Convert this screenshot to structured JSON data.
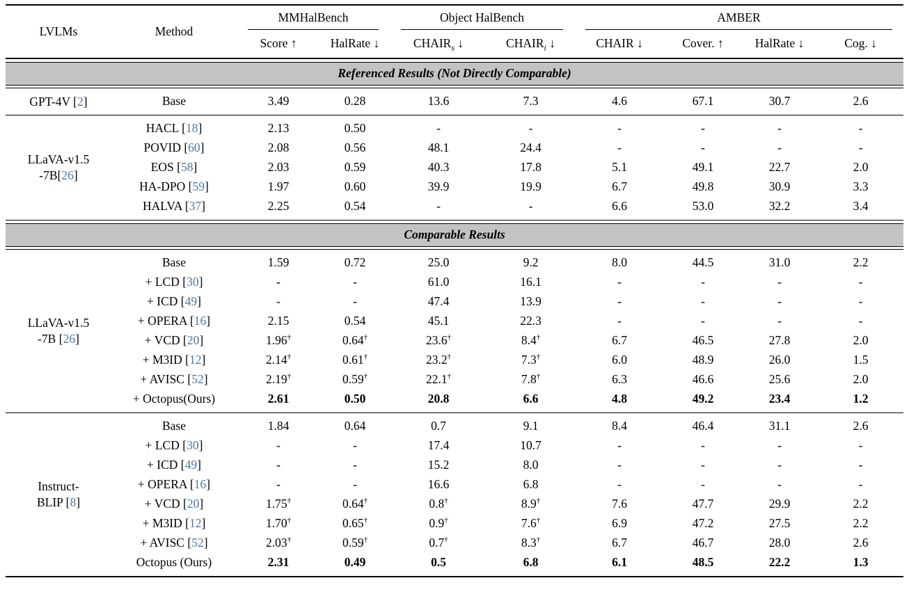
{
  "colors": {
    "citation_blue": "#4678b4",
    "band_gray": "#c3c3c3",
    "rule_black": "#000000"
  },
  "header": {
    "lvlms_label": "LVLMs",
    "method_label": "Method",
    "groups": [
      {
        "label": "MMHalBench",
        "columns": [
          {
            "text": "Score",
            "sub": "",
            "arrow": "↑"
          },
          {
            "text": "HalRate",
            "sub": "",
            "arrow": "↓"
          }
        ]
      },
      {
        "label": "Object HalBench",
        "columns": [
          {
            "text": "CHAIR",
            "sub": "s",
            "arrow": "↓"
          },
          {
            "text": "CHAIR",
            "sub": "i",
            "arrow": "↓"
          }
        ]
      },
      {
        "label": "AMBER",
        "columns": [
          {
            "text": "CHAIR",
            "sub": "",
            "arrow": "↓"
          },
          {
            "text": "Cover.",
            "sub": "",
            "arrow": "↑"
          },
          {
            "text": "HalRate",
            "sub": "",
            "arrow": "↓"
          },
          {
            "text": "Cog.",
            "sub": "",
            "arrow": "↓"
          }
        ]
      }
    ]
  },
  "sections": [
    {
      "type": "band",
      "label": "Referenced Results (Not Directly Comparable)"
    },
    {
      "type": "group",
      "lvlm": {
        "lines": [
          "GPT-4V"
        ],
        "cite": "2",
        "cite_space": true
      },
      "rows": [
        {
          "method": {
            "name": "Base"
          },
          "values": [
            "3.49",
            "0.28",
            "13.6",
            "7.3",
            "4.6",
            "67.1",
            "30.7",
            "2.6"
          ]
        }
      ]
    },
    {
      "type": "group",
      "lvlm": {
        "lines": [
          "LLaVA-v1.5",
          "-7B"
        ],
        "cite": "26",
        "cite_space": false
      },
      "rows": [
        {
          "method": {
            "name": "HACL",
            "cite": "18"
          },
          "values": [
            "2.13",
            "0.50",
            "-",
            "-",
            "-",
            "-",
            "-",
            "-"
          ]
        },
        {
          "method": {
            "name": "POVID",
            "cite": "60"
          },
          "values": [
            "2.08",
            "0.56",
            "48.1",
            "24.4",
            "-",
            "-",
            "-",
            "-"
          ]
        },
        {
          "method": {
            "name": "EOS",
            "cite": "58"
          },
          "values": [
            "2.03",
            "0.59",
            "40.3",
            "17.8",
            "5.1",
            "49.1",
            "22.7",
            "2.0"
          ]
        },
        {
          "method": {
            "name": "HA-DPO",
            "cite": "59"
          },
          "values": [
            "1.97",
            "0.60",
            "39.9",
            "19.9",
            "6.7",
            "49.8",
            "30.9",
            "3.3"
          ]
        },
        {
          "method": {
            "name": "HALVA",
            "cite": "37"
          },
          "values": [
            "2.25",
            "0.54",
            "-",
            "-",
            "6.6",
            "53.0",
            "32.2",
            "3.4"
          ]
        }
      ]
    },
    {
      "type": "band",
      "label": "Comparable Results"
    },
    {
      "type": "group",
      "lvlm": {
        "lines": [
          "LLaVA-v1.5",
          "-7B"
        ],
        "cite": "26",
        "cite_space": true
      },
      "rows": [
        {
          "method": {
            "name": "Base"
          },
          "values": [
            "1.59",
            "0.72",
            "25.0",
            "9.2",
            "8.0",
            "44.5",
            "31.0",
            "2.2"
          ]
        },
        {
          "method": {
            "name": "+ LCD",
            "cite": "30"
          },
          "values": [
            "-",
            "-",
            "61.0",
            "16.1",
            "-",
            "-",
            "-",
            "-"
          ]
        },
        {
          "method": {
            "name": "+ ICD",
            "cite": "49"
          },
          "values": [
            "-",
            "-",
            "47.4",
            "13.9",
            "-",
            "-",
            "-",
            "-"
          ]
        },
        {
          "method": {
            "name": "+ OPERA",
            "cite": "16"
          },
          "values": [
            "2.15",
            "0.54",
            "45.1",
            "22.3",
            "-",
            "-",
            "-",
            "-"
          ]
        },
        {
          "method": {
            "name": "+ VCD",
            "cite": "20"
          },
          "values": [
            "1.96†",
            "0.64†",
            "23.6†",
            "8.4†",
            "6.7",
            "46.5",
            "27.8",
            "2.0"
          ]
        },
        {
          "method": {
            "name": "+ M3ID",
            "cite": "12"
          },
          "values": [
            "2.14†",
            "0.61†",
            "23.2†",
            "7.3†",
            "6.0",
            "48.9",
            "26.0",
            "1.5"
          ]
        },
        {
          "method": {
            "name": "+ AVISC",
            "cite": "52"
          },
          "values": [
            "2.19†",
            "0.59†",
            "22.1†",
            "7.8†",
            "6.3",
            "46.6",
            "25.6",
            "2.0"
          ]
        },
        {
          "method": {
            "name": "+ Octopus(Ours)"
          },
          "bold": true,
          "values": [
            "2.61",
            "0.50",
            "20.8",
            "6.6",
            "4.8",
            "49.2",
            "23.4",
            "1.2"
          ]
        }
      ]
    },
    {
      "type": "group",
      "lvlm": {
        "lines": [
          "Instruct-",
          "BLIP"
        ],
        "cite": "8",
        "cite_space": true
      },
      "rows": [
        {
          "method": {
            "name": "Base"
          },
          "values": [
            "1.84",
            "0.64",
            "0.7",
            "9.1",
            "8.4",
            "46.4",
            "31.1",
            "2.6"
          ]
        },
        {
          "method": {
            "name": "+ LCD",
            "cite": "30"
          },
          "values": [
            "-",
            "-",
            "17.4",
            "10.7",
            "-",
            "-",
            "-",
            "-"
          ]
        },
        {
          "method": {
            "name": "+ ICD",
            "cite": "49"
          },
          "values": [
            "-",
            "-",
            "15.2",
            "8.0",
            "-",
            "-",
            "-",
            "-"
          ]
        },
        {
          "method": {
            "name": "+ OPERA",
            "cite": "16"
          },
          "values": [
            "-",
            "-",
            "16.6",
            "6.8",
            "-",
            "-",
            "-",
            "-"
          ]
        },
        {
          "method": {
            "name": "+ VCD",
            "cite": "20"
          },
          "values": [
            "1.75†",
            "0.64†",
            "0.8†",
            "8.9†",
            "7.6",
            "47.7",
            "29.9",
            "2.2"
          ]
        },
        {
          "method": {
            "name": "+ M3ID",
            "cite": "12"
          },
          "values": [
            "1.70†",
            "0.65†",
            "0.9†",
            "7.6†",
            "6.9",
            "47.2",
            "27.5",
            "2.2"
          ]
        },
        {
          "method": {
            "name": "+ AVISC",
            "cite": "52"
          },
          "values": [
            "2.03†",
            "0.59†",
            "0.7†",
            "8.3†",
            "6.7",
            "46.7",
            "28.0",
            "2.6"
          ]
        },
        {
          "method": {
            "name": "Octopus (Ours)"
          },
          "bold": true,
          "values": [
            "2.31",
            "0.49",
            "0.5",
            "6.8",
            "6.1",
            "48.5",
            "22.2",
            "1.3"
          ]
        }
      ]
    }
  ]
}
